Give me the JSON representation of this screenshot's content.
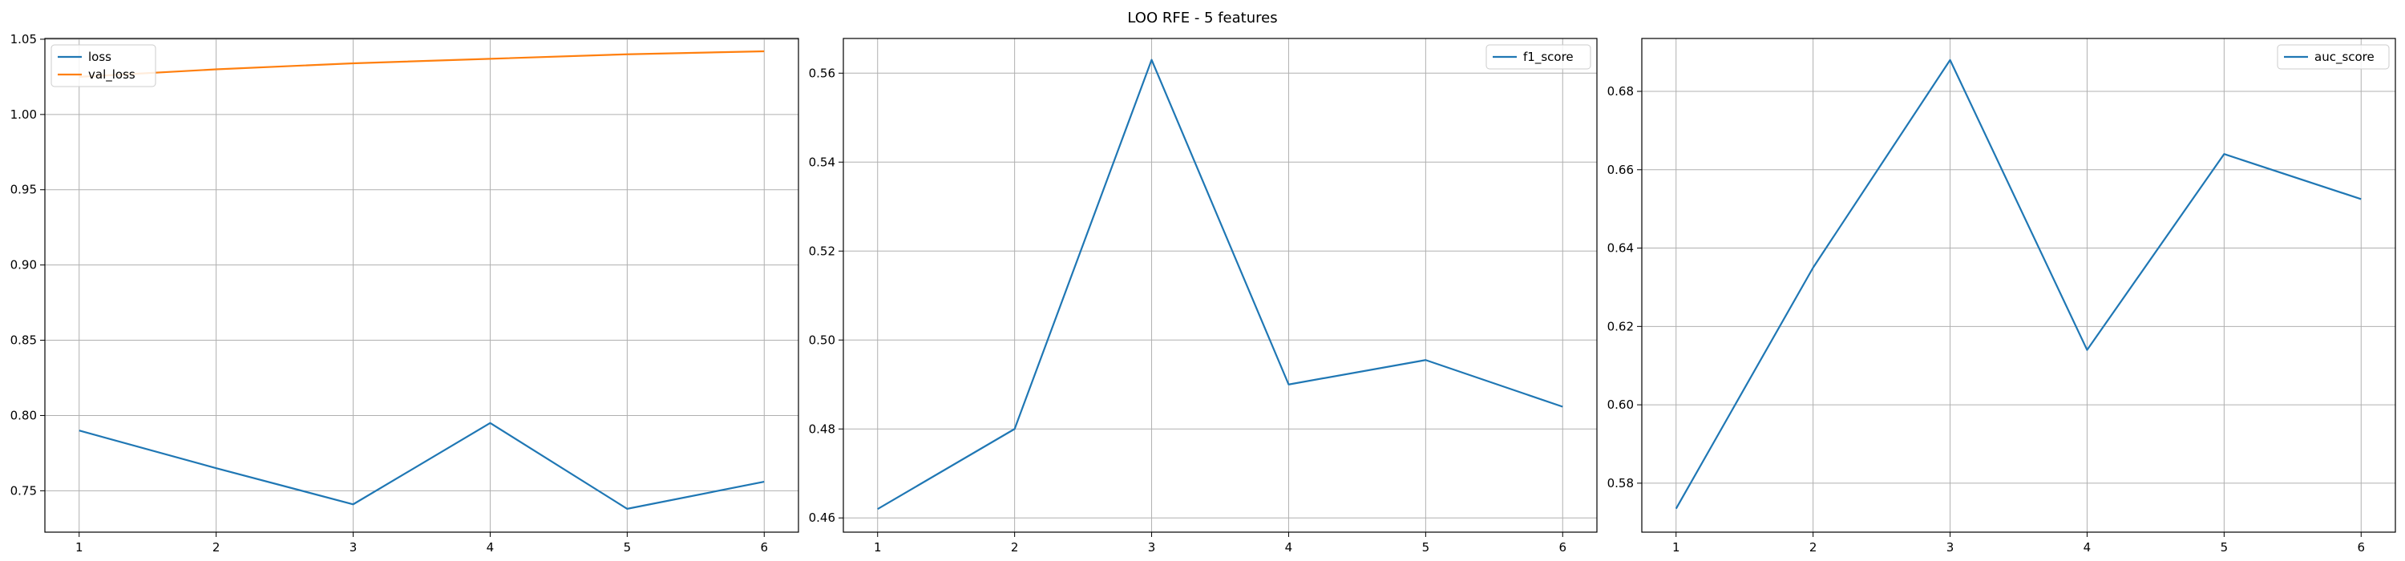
{
  "figure": {
    "title": "LOO RFE - 5 features"
  },
  "colors": {
    "blue": "#1f77b4",
    "orange": "#ff7f0e",
    "grid": "#b0b0b0",
    "axis": "#000000"
  },
  "chart_data": [
    {
      "type": "line",
      "x": [
        1,
        2,
        3,
        4,
        5,
        6
      ],
      "xlim": [
        0.75,
        6.25
      ],
      "ylim": [
        0.7225,
        1.0505
      ],
      "xticks": [
        1,
        2,
        3,
        4,
        5,
        6
      ],
      "yticks": [
        0.75,
        0.8,
        0.85,
        0.9,
        0.95,
        1.0,
        1.05
      ],
      "ytick_decimals": 2,
      "grid": true,
      "legend_position": "top-left",
      "series": [
        {
          "name": "loss",
          "color": "#1f77b4",
          "values": [
            0.79,
            0.765,
            0.741,
            0.795,
            0.738,
            0.756
          ]
        },
        {
          "name": "val_loss",
          "color": "#ff7f0e",
          "values": [
            1.025,
            1.03,
            1.034,
            1.037,
            1.04,
            1.042
          ]
        }
      ]
    },
    {
      "type": "line",
      "x": [
        1,
        2,
        3,
        4,
        5,
        6
      ],
      "xlim": [
        0.75,
        6.25
      ],
      "ylim": [
        0.4568,
        0.5678
      ],
      "xticks": [
        1,
        2,
        3,
        4,
        5,
        6
      ],
      "yticks": [
        0.46,
        0.48,
        0.5,
        0.52,
        0.54,
        0.56
      ],
      "ytick_decimals": 2,
      "grid": true,
      "legend_position": "top-right",
      "series": [
        {
          "name": "f1_score",
          "color": "#1f77b4",
          "values": [
            0.462,
            0.48,
            0.563,
            0.49,
            0.4955,
            0.485
          ]
        }
      ]
    },
    {
      "type": "line",
      "x": [
        1,
        2,
        3,
        4,
        5,
        6
      ],
      "xlim": [
        0.75,
        6.25
      ],
      "ylim": [
        0.5675,
        0.6935
      ],
      "xticks": [
        1,
        2,
        3,
        4,
        5,
        6
      ],
      "yticks": [
        0.58,
        0.6,
        0.62,
        0.64,
        0.66,
        0.68
      ],
      "ytick_decimals": 2,
      "grid": true,
      "legend_position": "top-right",
      "series": [
        {
          "name": "auc_score",
          "color": "#1f77b4",
          "values": [
            0.5735,
            0.635,
            0.688,
            0.614,
            0.664,
            0.6525
          ]
        }
      ]
    }
  ]
}
